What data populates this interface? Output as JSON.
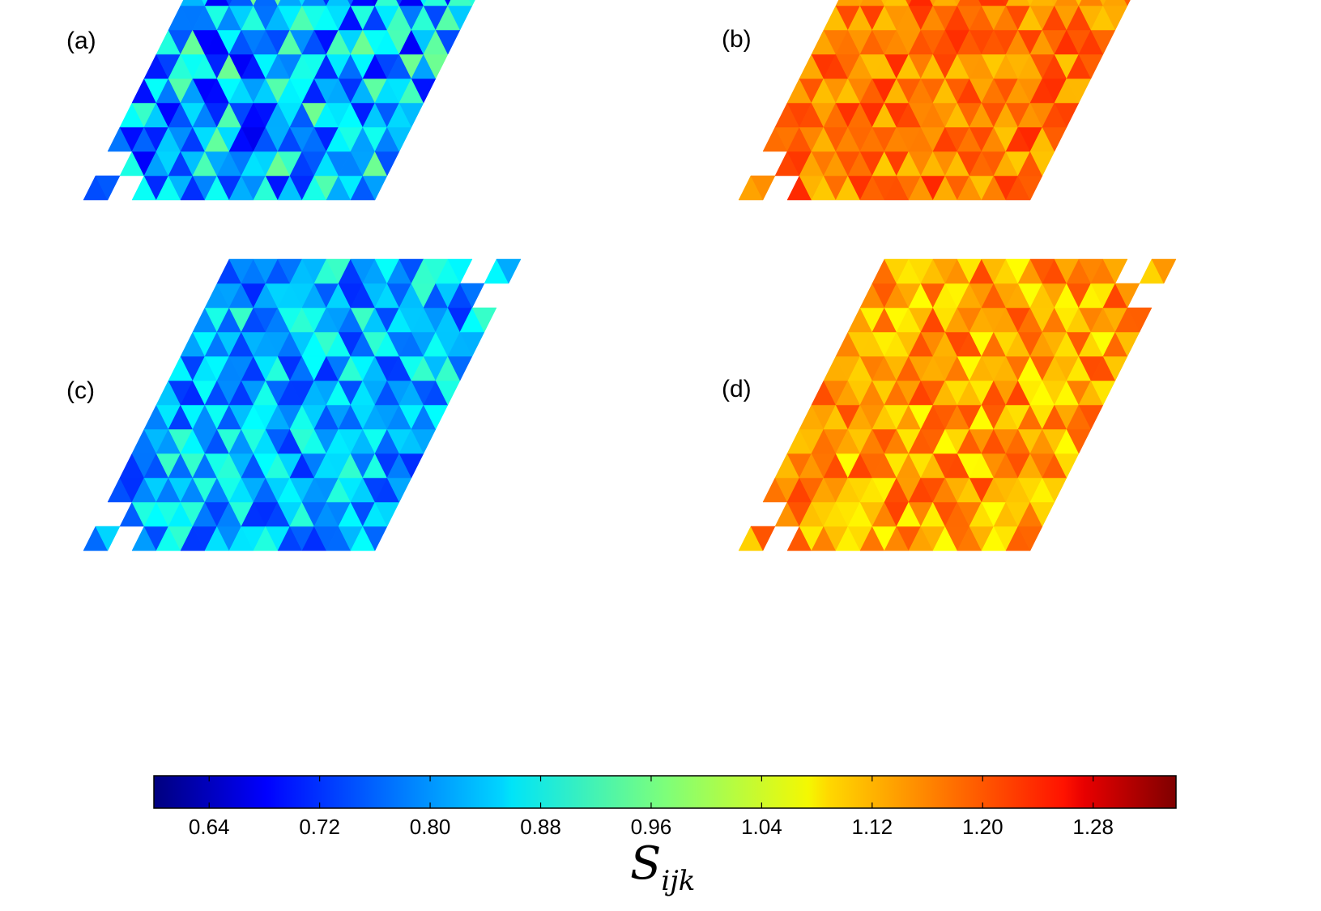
{
  "chart_data": {
    "type": "heatmap",
    "description_free": true,
    "panels": [
      {
        "label": "(a)",
        "palette": "cool",
        "value_range": [
          0.68,
          0.96
        ]
      },
      {
        "label": "(b)",
        "palette": "warm",
        "value_range": [
          1.1,
          1.22
        ]
      },
      {
        "label": "(c)",
        "palette": "cool",
        "value_range": [
          0.72,
          0.92
        ]
      },
      {
        "label": "(d)",
        "palette": "warm",
        "value_range": [
          1.06,
          1.2
        ]
      }
    ],
    "grid": {
      "rows": 12,
      "cols": 12,
      "cell": "triangle-rhombus"
    },
    "colorbar": {
      "title_main": "S",
      "title_sub": "ijk",
      "vmin": 0.6,
      "vmax": 1.34,
      "ticks": [
        0.64,
        0.72,
        0.8,
        0.88,
        0.96,
        1.04,
        1.12,
        1.2,
        1.28
      ],
      "tick_labels": [
        "0.64",
        "0.72",
        "0.80",
        "0.88",
        "0.96",
        "1.04",
        "1.12",
        "1.20",
        "1.28"
      ],
      "colormap": "jet"
    }
  }
}
